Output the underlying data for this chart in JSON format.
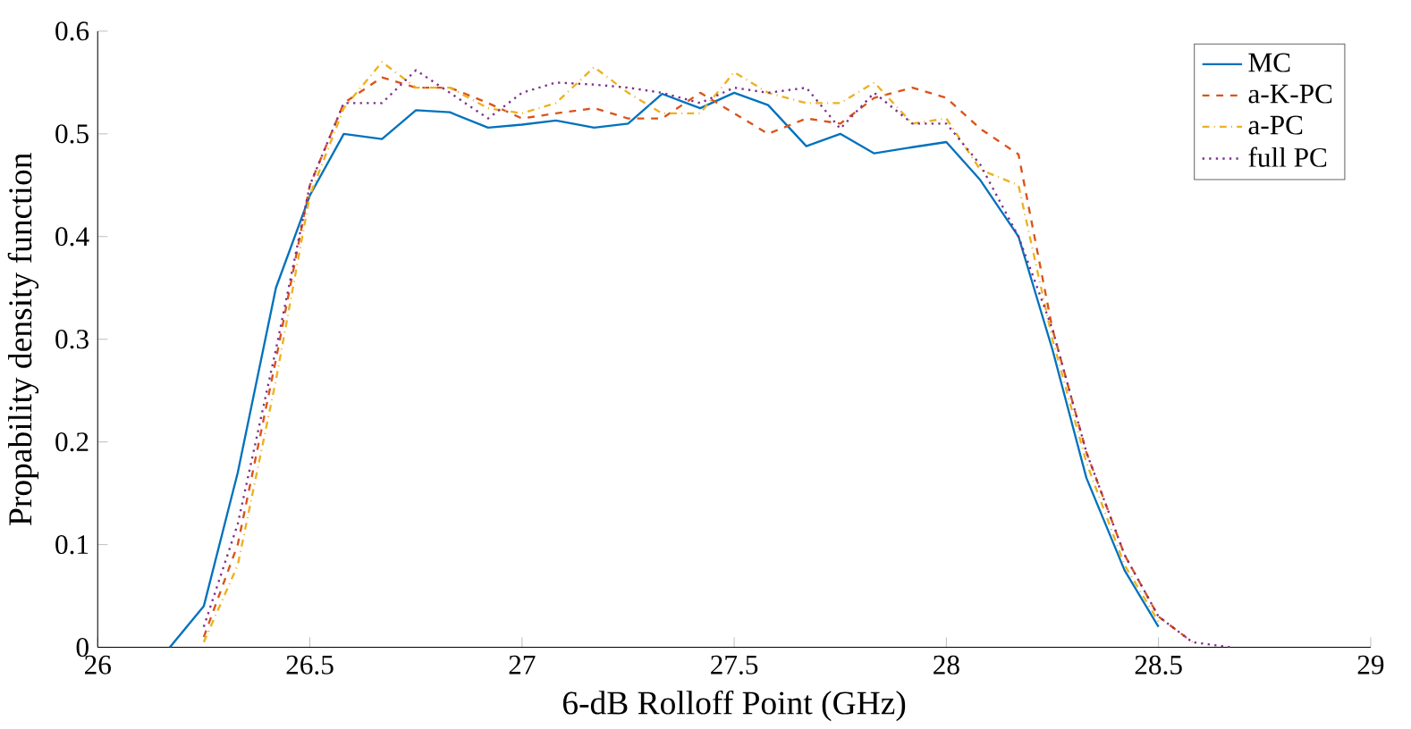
{
  "chart_data": {
    "type": "line",
    "xlabel": "6-dB Rolloff Point (GHz)",
    "ylabel": "Propability density function",
    "xlim": [
      26,
      29
    ],
    "ylim": [
      0,
      0.6
    ],
    "xticks": [
      26,
      26.5,
      27,
      27.5,
      28,
      28.5,
      29
    ],
    "yticks": [
      0,
      0.1,
      0.2,
      0.3,
      0.4,
      0.5,
      0.6
    ],
    "legend": "top right",
    "series": [
      {
        "name": "MC",
        "color": "#0072bd",
        "line_style": "solid",
        "x": [
          26.17,
          26.25,
          26.33,
          26.42,
          26.5,
          26.58,
          26.67,
          26.75,
          26.83,
          26.92,
          27.0,
          27.08,
          27.17,
          27.25,
          27.33,
          27.42,
          27.5,
          27.58,
          27.67,
          27.75,
          27.83,
          27.92,
          28.0,
          28.08,
          28.17,
          28.25,
          28.33,
          28.42,
          28.5
        ],
        "values": [
          0,
          0.04,
          0.17,
          0.35,
          0.44,
          0.5,
          0.495,
          0.523,
          0.521,
          0.506,
          0.509,
          0.513,
          0.506,
          0.51,
          0.539,
          0.525,
          0.54,
          0.528,
          0.488,
          0.5,
          0.481,
          0.487,
          0.492,
          0.455,
          0.4,
          0.29,
          0.165,
          0.075,
          0.02
        ]
      },
      {
        "name": "a-K-PC",
        "color": "#d95319",
        "line_style": "dashed",
        "x": [
          26.25,
          26.33,
          26.42,
          26.5,
          26.58,
          26.67,
          26.75,
          26.83,
          26.92,
          27.0,
          27.08,
          27.17,
          27.25,
          27.33,
          27.42,
          27.5,
          27.58,
          27.67,
          27.75,
          27.83,
          27.92,
          28.0,
          28.08,
          28.17,
          28.25,
          28.33,
          28.42,
          28.5,
          28.58
        ],
        "values": [
          0.01,
          0.1,
          0.28,
          0.45,
          0.53,
          0.555,
          0.545,
          0.545,
          0.53,
          0.515,
          0.52,
          0.525,
          0.515,
          0.515,
          0.54,
          0.52,
          0.5,
          0.515,
          0.51,
          0.535,
          0.545,
          0.535,
          0.505,
          0.48,
          0.31,
          0.19,
          0.09,
          0.03,
          0.005
        ]
      },
      {
        "name": "a-PC",
        "color": "#edb120",
        "line_style": "dashdot",
        "x": [
          26.25,
          26.33,
          26.42,
          26.5,
          26.58,
          26.67,
          26.75,
          26.83,
          26.92,
          27.0,
          27.08,
          27.17,
          27.25,
          27.33,
          27.42,
          27.5,
          27.58,
          27.67,
          27.75,
          27.83,
          27.92,
          28.0,
          28.08,
          28.17,
          28.25,
          28.33,
          28.42,
          28.5
        ],
        "values": [
          0.005,
          0.08,
          0.26,
          0.44,
          0.525,
          0.57,
          0.545,
          0.545,
          0.525,
          0.52,
          0.53,
          0.565,
          0.54,
          0.52,
          0.52,
          0.56,
          0.54,
          0.53,
          0.53,
          0.55,
          0.51,
          0.515,
          0.465,
          0.45,
          0.3,
          0.18,
          0.08,
          0.025
        ]
      },
      {
        "name": "full PC",
        "color": "#7e2f8e",
        "line_style": "dotted",
        "x": [
          26.25,
          26.33,
          26.42,
          26.5,
          26.58,
          26.67,
          26.75,
          26.83,
          26.92,
          27.0,
          27.08,
          27.17,
          27.25,
          27.33,
          27.42,
          27.5,
          27.58,
          27.67,
          27.75,
          27.83,
          27.92,
          28.0,
          28.08,
          28.17,
          28.25,
          28.33,
          28.42,
          28.5,
          28.58,
          28.67
        ],
        "values": [
          0.02,
          0.12,
          0.29,
          0.45,
          0.53,
          0.53,
          0.562,
          0.54,
          0.515,
          0.54,
          0.55,
          0.548,
          0.545,
          0.54,
          0.53,
          0.545,
          0.54,
          0.545,
          0.505,
          0.54,
          0.51,
          0.51,
          0.47,
          0.4,
          0.31,
          0.19,
          0.09,
          0.03,
          0.005,
          0
        ]
      }
    ]
  }
}
